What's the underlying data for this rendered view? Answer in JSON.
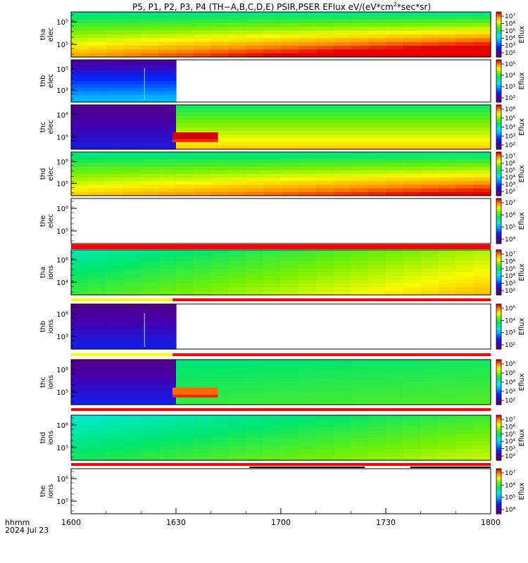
{
  "title_prefix": "P5, P1, P2, P3, P4 (TH−A,B,C,D,E) PSIR,PSER EFlux eV/(eV*cm",
  "title_sup": "2",
  "title_suffix": "*sec*sr)",
  "time_axis": {
    "label": "hhmm",
    "date": "2024 Jul 23",
    "ticks": [
      "1600",
      "1630",
      "1700",
      "1730",
      "1800"
    ]
  },
  "colorbar_label": "Eflux",
  "colors": {
    "red_bar": "#ff0000",
    "yellow_bar": "#ffff00",
    "black_bar": "#000000"
  },
  "chart_data": {
    "type": "heatmap",
    "x_range": [
      "16:00",
      "18:00"
    ],
    "panels": [
      {
        "name": "tha elec",
        "label1": "tha",
        "label2": "elec",
        "yticks": [
          "10⁵",
          "10⁵"
        ],
        "cbticks": [
          "10⁷",
          "10⁶",
          "10⁵",
          "10⁴",
          "10³",
          "10²"
        ],
        "data_window": [
          "16:00",
          "18:00"
        ],
        "pattern": "green top, yellow-orange-red toward bottom and later times"
      },
      {
        "name": "thb elec",
        "label1": "thb",
        "label2": "elec",
        "yticks": [
          "10⁵",
          "10³"
        ],
        "cbticks": [
          "10⁵",
          "10⁴",
          "10³",
          "10²"
        ],
        "data_window": [
          "16:00",
          "16:28"
        ],
        "pattern": "blue/purple low flux"
      },
      {
        "name": "thc elec",
        "label1": "thc",
        "label2": "elec",
        "yticks": [
          "10⁶",
          "10⁵"
        ],
        "cbticks": [
          "10⁶",
          "10⁵",
          "10⁴",
          "10³",
          "10²"
        ],
        "data_window": [
          "16:00",
          "18:00"
        ],
        "pattern": "purple until 16:29, then green/yellow with red band 16:29–16:42"
      },
      {
        "name": "thd elec",
        "label1": "thd",
        "label2": "elec",
        "yticks": [
          "10⁵",
          "10⁵"
        ],
        "cbticks": [
          "10⁷",
          "10⁶",
          "10⁵",
          "10⁴",
          "10³",
          "10²"
        ],
        "data_window": [
          "16:00",
          "18:00"
        ],
        "pattern": "green top, yellow-red at bottom increasing with time"
      },
      {
        "name": "the elec",
        "label1": "the",
        "label2": "elec",
        "yticks": [
          "10⁶",
          "10⁵"
        ],
        "cbticks": [
          "10⁷",
          "10⁶",
          "10⁵",
          "10⁴"
        ],
        "data_window": [],
        "pattern": "no data"
      },
      {
        "name": "tha ions",
        "label1": "tha",
        "label2": "ions",
        "yticks": [
          "10⁶",
          "10⁴"
        ],
        "cbticks": [
          "10⁷",
          "10⁶",
          "10⁵",
          "10⁴",
          "10³",
          "10²"
        ],
        "data_window": [
          "16:00",
          "18:00"
        ],
        "pattern": "green, yellow increasing toward later times"
      },
      {
        "name": "thb ions",
        "label1": "thb",
        "label2": "ions",
        "yticks": [
          "10⁶",
          "10³"
        ],
        "cbticks": [
          "10⁵",
          "10⁴",
          "10³",
          "10²"
        ],
        "data_window": [
          "16:00",
          "16:28"
        ],
        "pattern": "purple/blue low flux"
      },
      {
        "name": "thc ions",
        "label1": "thc",
        "label2": "ions",
        "yticks": [
          "10⁶",
          "10⁵"
        ],
        "cbticks": [
          "10⁵",
          "10⁵",
          "10⁴",
          "10³",
          "10²"
        ],
        "data_window": [
          "16:00",
          "18:00"
        ],
        "pattern": "purple until 16:29, then green with orange band 16:29–16:42"
      },
      {
        "name": "thd ions",
        "label1": "thd",
        "label2": "ions",
        "yticks": [
          "10⁶",
          "10⁵"
        ],
        "cbticks": [
          "10⁷",
          "10⁶",
          "10⁵",
          "10⁴",
          "10³",
          "10²"
        ],
        "data_window": [
          "16:00",
          "18:00"
        ],
        "pattern": "cyan-green top, green-yellow toward bottom/later"
      },
      {
        "name": "the ions",
        "label1": "the",
        "label2": "ions",
        "yticks": [
          "10⁶",
          "10⁵"
        ],
        "cbticks": [
          "10⁷",
          "10⁶",
          "10⁵",
          "10⁴"
        ],
        "data_window": [],
        "pattern": "no data"
      }
    ]
  }
}
